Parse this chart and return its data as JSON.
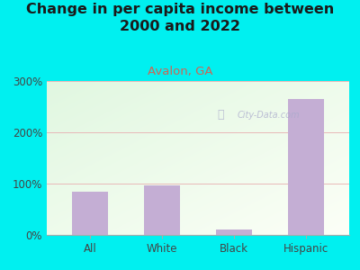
{
  "title": "Change in per capita income between\n2000 and 2022",
  "subtitle": "Avalon, GA",
  "categories": [
    "All",
    "White",
    "Black",
    "Hispanic"
  ],
  "values": [
    85,
    97,
    10,
    265
  ],
  "bar_color": "#c4aed4",
  "title_fontsize": 11.5,
  "subtitle_fontsize": 9.5,
  "subtitle_color": "#cc6655",
  "title_color": "#1a1a1a",
  "background_color": "#00f0f0",
  "ylim": [
    0,
    300
  ],
  "yticks": [
    0,
    100,
    200,
    300
  ],
  "ytick_labels": [
    "0%",
    "100%",
    "200%",
    "300%"
  ],
  "grid_color": "#e8b8b8",
  "tick_label_color": "#444444",
  "watermark_text": "City-Data.com",
  "watermark_color": "#aaaacc"
}
